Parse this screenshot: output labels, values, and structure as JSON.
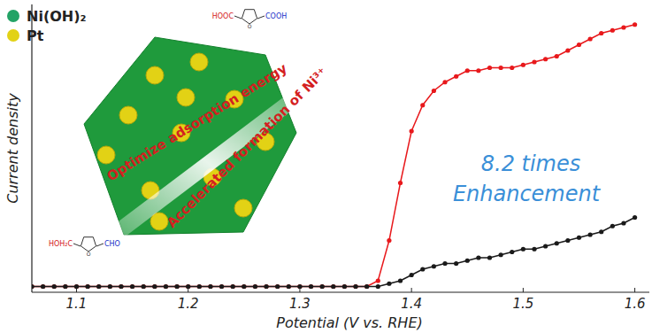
{
  "chart_data": {
    "type": "line",
    "x_label": "Potential (V vs. RHE)",
    "y_label": "Current density",
    "xlim": [
      1.06,
      1.613
    ],
    "xticks": [
      1.1,
      1.2,
      1.3,
      1.4,
      1.5,
      1.6
    ],
    "ylim": [
      0,
      100
    ],
    "yticks": [],
    "tick_labels": "x",
    "grid": false,
    "x": [
      1.06,
      1.07,
      1.08,
      1.09,
      1.1,
      1.11,
      1.12,
      1.13,
      1.14,
      1.15,
      1.16,
      1.17,
      1.18,
      1.19,
      1.2,
      1.21,
      1.22,
      1.23,
      1.24,
      1.25,
      1.26,
      1.27,
      1.28,
      1.29,
      1.3,
      1.31,
      1.32,
      1.33,
      1.34,
      1.35,
      1.36,
      1.37,
      1.38,
      1.39,
      1.4,
      1.41,
      1.42,
      1.43,
      1.44,
      1.45,
      1.46,
      1.47,
      1.48,
      1.49,
      1.5,
      1.51,
      1.52,
      1.53,
      1.54,
      1.55,
      1.56,
      1.57,
      1.58,
      1.59,
      1.6
    ],
    "series": [
      {
        "color": "#e8191c",
        "marker": "circle",
        "line_style": "solid",
        "values": [
          2,
          2,
          2,
          2,
          2,
          2,
          2,
          2,
          2,
          2,
          2,
          2,
          2,
          2,
          2,
          2,
          2,
          2,
          2,
          2,
          2,
          2,
          2,
          2,
          2,
          2,
          2,
          2,
          2,
          2,
          2,
          4,
          18,
          38,
          56,
          65,
          70,
          73,
          75,
          77,
          77,
          78,
          78,
          78,
          79,
          80,
          81,
          82,
          84,
          86,
          88,
          90,
          91,
          92,
          93
        ]
      },
      {
        "color": "#1a1a1a",
        "marker": "circle",
        "line_style": "solid",
        "values": [
          2,
          2,
          2,
          2,
          2,
          2,
          2,
          2,
          2,
          2,
          2,
          2,
          2,
          2,
          2,
          2,
          2,
          2,
          2,
          2,
          2,
          2,
          2,
          2,
          2,
          2,
          2,
          2,
          2,
          2,
          2,
          2,
          3,
          4,
          6,
          8,
          9,
          10,
          10,
          11,
          12,
          12,
          13,
          14,
          15,
          15,
          16,
          17,
          18,
          19,
          20,
          21,
          23,
          24,
          26
        ]
      }
    ],
    "inset_legend": [
      {
        "label": "Ni(OH)₂",
        "color": "#23a366"
      },
      {
        "label": "Pt",
        "color": "#e2d215"
      }
    ],
    "annotations": [
      {
        "text": "Optimize adsorption energy",
        "color": "#d42020"
      },
      {
        "text": "Accelerated formation of Ni³⁺",
        "color": "#d42020"
      },
      {
        "text": "8.2 times",
        "color": "#3a8fd8"
      },
      {
        "text": "Enhancement",
        "color": "#3a8fd8"
      }
    ],
    "molecules": [
      {
        "left": "HOOC",
        "right": "COOH"
      },
      {
        "left": "HOH₂C",
        "right": "CHO"
      }
    ]
  }
}
